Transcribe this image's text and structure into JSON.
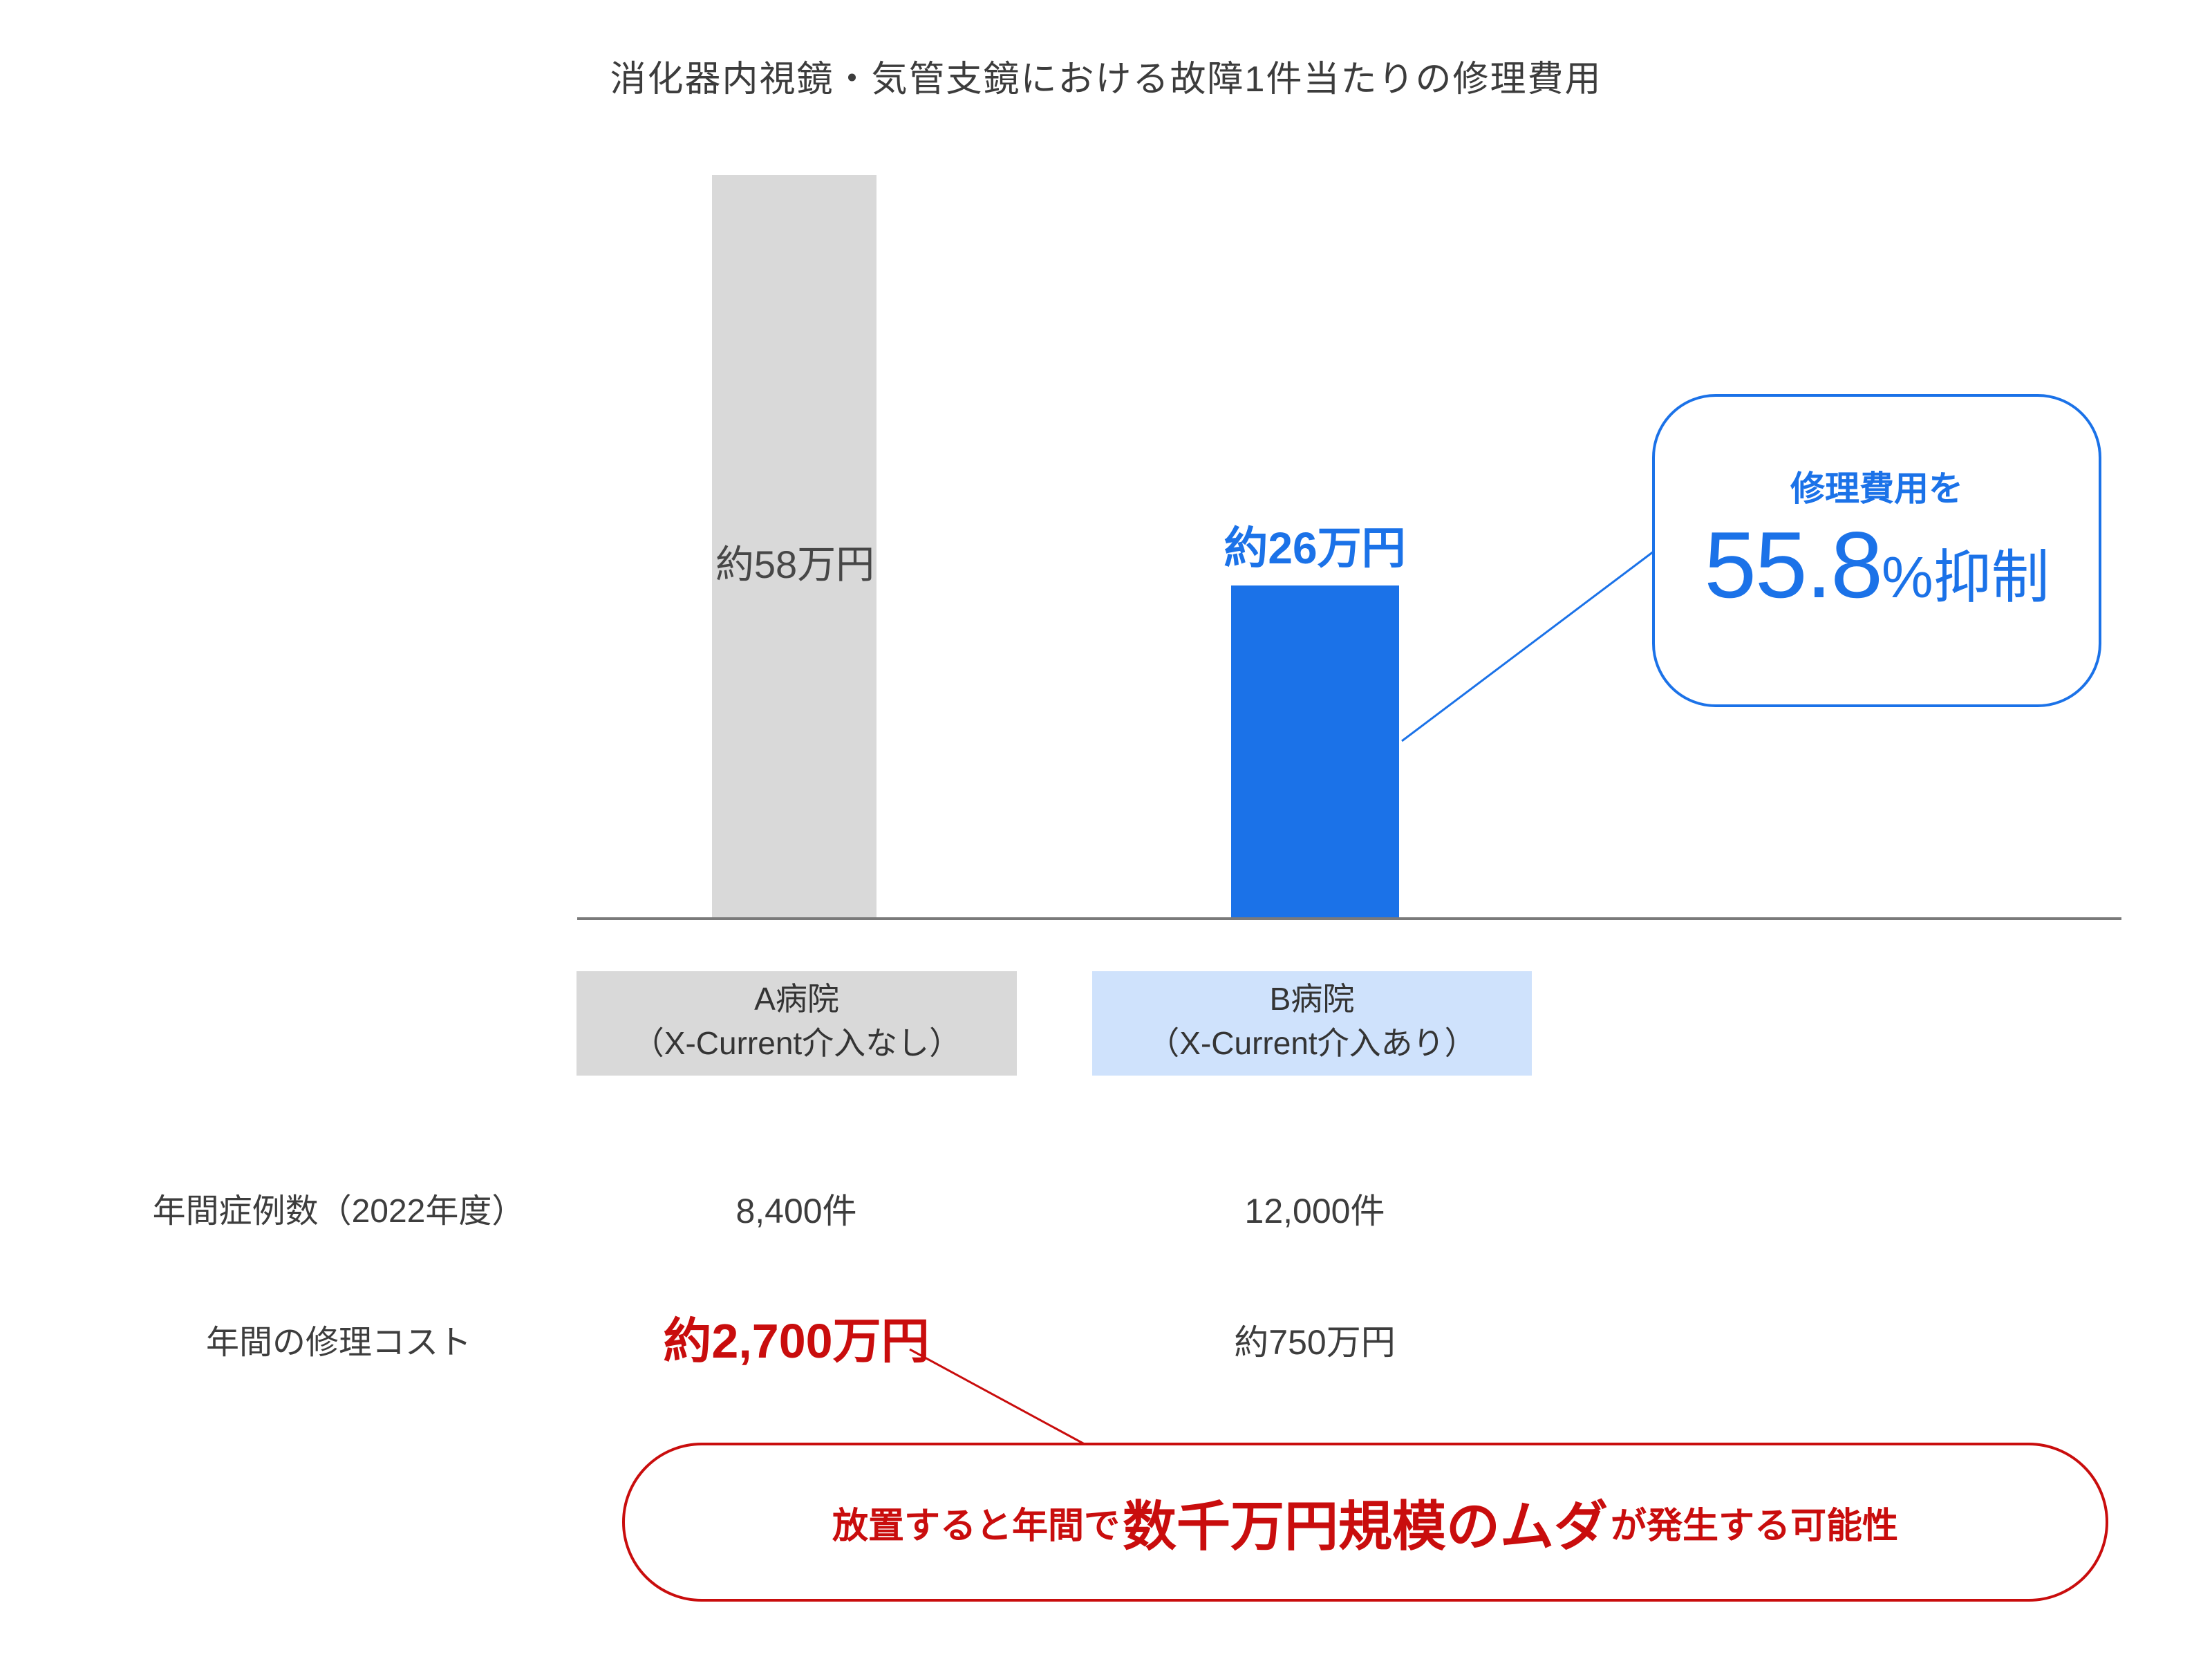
{
  "title": "消化器内視鏡・気管支鏡における故障1件当たりの修理費用",
  "chart_data": {
    "type": "bar",
    "title": "消化器内視鏡・気管支鏡における故障1件当たりの修理費用",
    "categories": [
      "A病院（X-Current介入なし）",
      "B病院（X-Current介入あり）"
    ],
    "values": [
      58,
      26
    ],
    "unit": "万円",
    "value_labels": [
      "約58万円",
      "約26万円"
    ],
    "bar_colors": [
      "#d9d9d9",
      "#1b72e8"
    ],
    "ylim": [
      0,
      60
    ],
    "grid": false,
    "legend": "none",
    "annotations": [
      {
        "target": "B病院",
        "text": "修理費用を55.8%抑制"
      },
      {
        "target": "年間の修理コスト（A病院）",
        "text": "放置すると年間で数千万円規模のムダが発生する可能性"
      }
    ],
    "table": {
      "row_headers": [
        "年間症例数（2022年度）",
        "年間の修理コスト"
      ],
      "columns": [
        "A病院（X-Current介入なし）",
        "B病院（X-Current介入あり）"
      ],
      "cells": [
        [
          "8,400件",
          "12,000件"
        ],
        [
          "約2,700万円",
          "約750万円"
        ]
      ]
    }
  },
  "category_boxes": [
    {
      "line1": "A病院",
      "line2": "（X-Current介入なし）"
    },
    {
      "line1": "B病院",
      "line2": "（X-Current介入あり）"
    }
  ],
  "callout": {
    "line1": "修理費用を",
    "big": "55.8",
    "suffix": "%抑制"
  },
  "rows": [
    {
      "label": "年間症例数（2022年度）",
      "a": "8,400件",
      "b": "12,000件"
    },
    {
      "label": "年間の修理コスト",
      "a": "約2,700万円",
      "b": "約750万円"
    }
  ],
  "note": {
    "pre": "放置すると年間で",
    "em": "数千万円規模のムダ",
    "post": "が発生する可能性"
  },
  "colors": {
    "bar_gray": "#d9d9d9",
    "bar_blue": "#1b72e8",
    "label_blue_bg": "#cfe2fc",
    "red": "#c90d0d",
    "axis": "#7a7a7a",
    "text_dark": "#3c3c3c",
    "text_value_gray": "#474747"
  }
}
